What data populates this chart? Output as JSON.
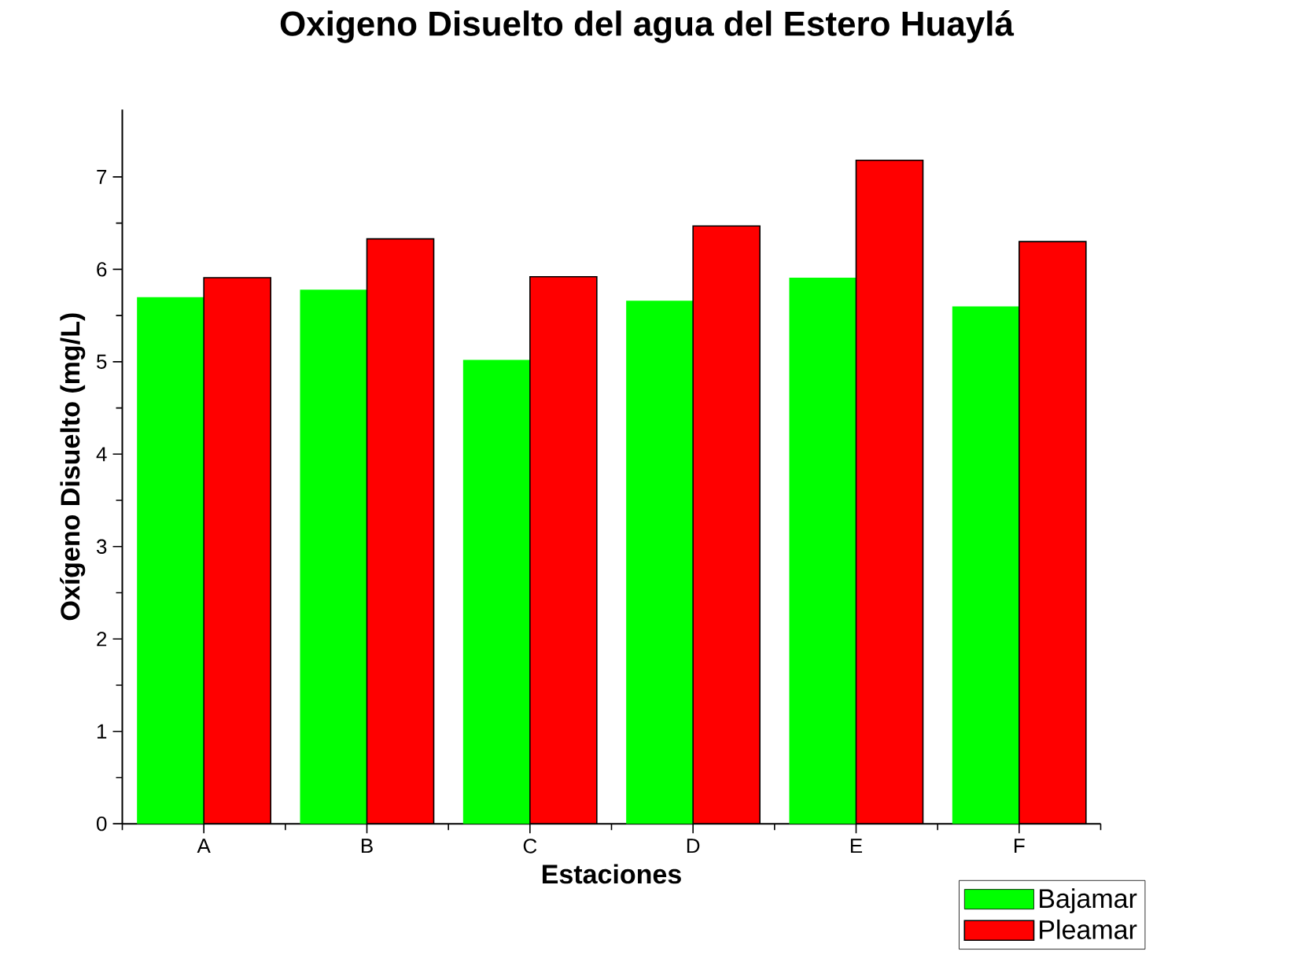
{
  "chart_data": {
    "type": "bar",
    "title": "Oxigeno Disuelto del agua del Estero Huaylá",
    "xlabel": "Estaciones",
    "ylabel": "Oxígeno Disuelto (mg/L)",
    "categories": [
      "A",
      "B",
      "C",
      "D",
      "E",
      "F"
    ],
    "series": [
      {
        "name": "Bajamar",
        "color": "#00ff00",
        "values": [
          5.7,
          5.78,
          5.02,
          5.66,
          5.91,
          5.6
        ]
      },
      {
        "name": "Pleamar",
        "color": "#ff0000",
        "values": [
          5.91,
          6.33,
          5.92,
          6.47,
          7.18,
          6.3
        ]
      }
    ],
    "ylim": [
      0,
      7.73
    ],
    "yticks": [
      0,
      1,
      2,
      3,
      4,
      5,
      6,
      7
    ],
    "grid": false,
    "legend": "bottom right"
  }
}
